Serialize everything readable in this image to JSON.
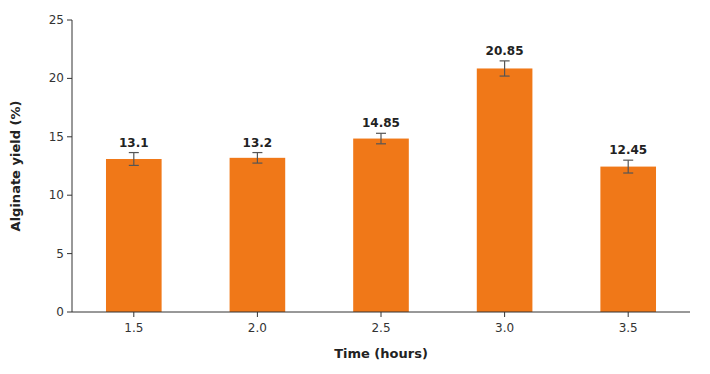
{
  "chart_data": {
    "type": "bar",
    "categories": [
      "1.5",
      "2.0",
      "2.5",
      "3.0",
      "3.5"
    ],
    "values": [
      13.1,
      13.2,
      14.85,
      20.85,
      12.45
    ],
    "errors": [
      0.55,
      0.45,
      0.45,
      0.65,
      0.55
    ],
    "color": "#F07818",
    "xlabel": "Time (hours)",
    "ylabel": "Alginate yield (%)",
    "ylim": [
      0,
      25
    ],
    "yticks": [
      0,
      5,
      10,
      15,
      20,
      25
    ],
    "data_labels": true,
    "grid": false
  }
}
